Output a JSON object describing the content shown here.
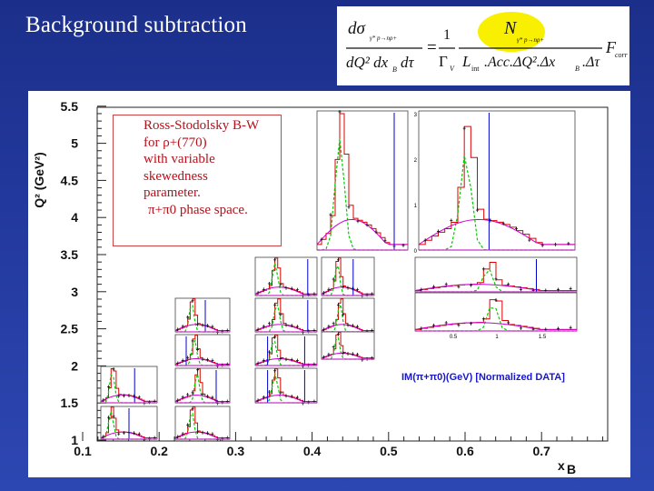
{
  "slide": {
    "title": "Background subtraction"
  },
  "formula": {
    "lhs_numerator": "dσ",
    "lhs_numerator_sub": "γ* p→nρ+",
    "lhs_denominator": "dQ² dx",
    "lhs_denominator_sub": "B",
    "lhs_denominator_tail": "dτ",
    "equals": "=",
    "gamma_num": "1",
    "gamma_den": "Γ",
    "gamma_den_sub": "V",
    "counts": "N",
    "counts_sub": "γ* p→nρ+",
    "denominator_main": "L",
    "denominator_sub": "int",
    "denominator_rest": ".Acc.ΔQ².Δx",
    "denominator_sub2": "B",
    "denominator_tail": ".Δτ",
    "correction": "F",
    "correction_sub": "corr",
    "highlight_color": "#f8f000"
  },
  "note": {
    "lines": [
      "Ross-Stodolsky B-W",
      "for ρ+(770)",
      "with variable",
      "skewedness",
      "parameter.",
      "π+π0 phase space."
    ],
    "color": "#b3121b"
  },
  "chart_data": {
    "type": "histogram-grid",
    "xlabel": "x",
    "xlabel_sub": "B",
    "ylabel": "Q² (GeV²)",
    "x_ticks": [
      "0.1",
      "0.2",
      "0.3",
      "0.4",
      "0.5",
      "0.6",
      "0.7"
    ],
    "y_ticks": [
      "1",
      "1.5",
      "2",
      "2.5",
      "3",
      "3.5",
      "4",
      "4.5",
      "5",
      "5.5"
    ],
    "xlim": [
      0.1,
      0.78
    ],
    "ylim": [
      1,
      5.5
    ],
    "caption": "IM(π+π0)(GeV) [Normalized DATA]",
    "inset_x_ticks": [
      "0.5",
      "1",
      "1.5"
    ],
    "inset_y_ticks": [
      "0",
      "1",
      "2",
      "3"
    ],
    "legend_colors": {
      "data": "#111111",
      "total": "#dd0000",
      "signal": "#00cc00",
      "background": "#cc00cc",
      "cut": "#0000cc"
    }
  }
}
